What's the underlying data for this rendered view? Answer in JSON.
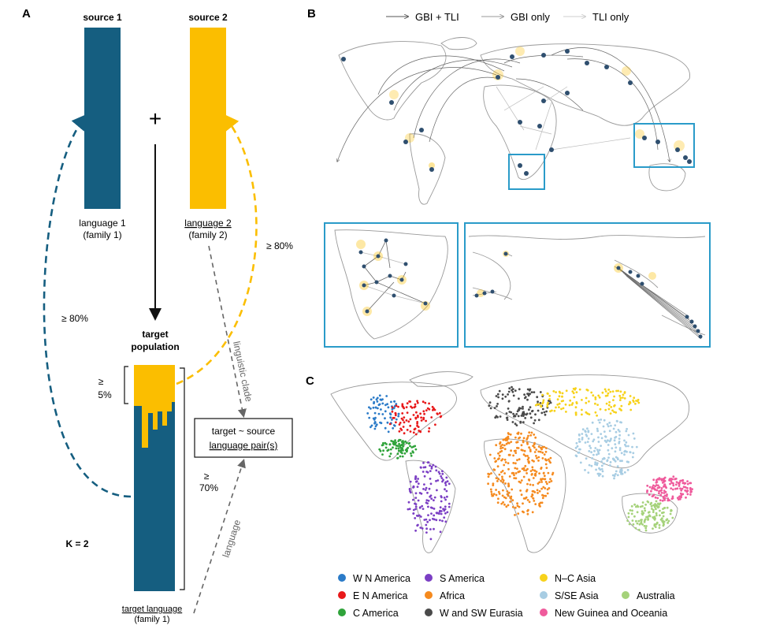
{
  "panels": {
    "a": "A",
    "b": "B",
    "c": "C"
  },
  "panelA": {
    "source1": "source 1",
    "source2": "source 2",
    "plus": "+",
    "lang1": "language 1",
    "family1": "(family 1)",
    "lang2": "language 2",
    "family2": "(family 2)",
    "pct_left": "≥  80%",
    "pct_right": "≥  80%",
    "target_pop_1": "target",
    "target_pop_2": "population",
    "ge5_1": "≥",
    "ge5_2": "5%",
    "ge70_1": "≥",
    "ge70_2": "70%",
    "pair_1": "target ~ source",
    "pair_2": "language pair(s)",
    "linguistic_clade": "linguistic clade",
    "language": "language",
    "k": "K = 2",
    "target_language": "target language",
    "target_family": "(family 1)"
  },
  "panelB": {
    "legend": [
      "GBI + TLI",
      "GBI only",
      "TLI only"
    ]
  },
  "panelC": {
    "legend": [
      {
        "label": "W N America",
        "color": "#2B7BC8"
      },
      {
        "label": "E N America",
        "color": "#E8191A"
      },
      {
        "label": "C America",
        "color": "#2FA33A"
      },
      {
        "label": "S America",
        "color": "#7B3FC4"
      },
      {
        "label": "Africa",
        "color": "#F58A1E"
      },
      {
        "label": "W and SW Eurasia",
        "color": "#4A4A4A"
      },
      {
        "label": "N–C Asia",
        "color": "#F7D21B"
      },
      {
        "label": "S/SE Asia",
        "color": "#A8CDE3"
      },
      {
        "label": "New Guinea and Oceania",
        "color": "#EF5B9C"
      },
      {
        "label": "Australia",
        "color": "#A5D27A"
      }
    ]
  },
  "colors": {
    "blue": "#155E80",
    "yellow": "#FBBE00",
    "accent": "#2A9BC9"
  }
}
